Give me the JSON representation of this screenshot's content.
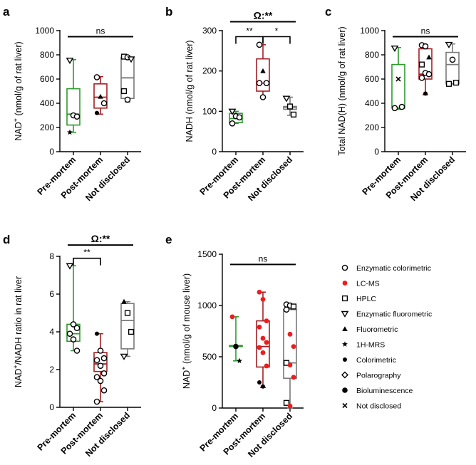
{
  "figure": {
    "panel_labels": [
      "a",
      "b",
      "c",
      "d",
      "e"
    ]
  },
  "legend": {
    "items": [
      {
        "label": "Enzymatic colorimetric",
        "marker": "circle-open"
      },
      {
        "label": "LC-MS",
        "marker": "circle-red"
      },
      {
        "label": "HPLC",
        "marker": "square-open"
      },
      {
        "label": "Enzymatic fluorometric",
        "marker": "triangle-down-open"
      },
      {
        "label": "Fluorometric",
        "marker": "triangle-up-filled"
      },
      {
        "label": "1H-MRS",
        "marker": "star"
      },
      {
        "label": "Colorimetric",
        "marker": "circle-filled-small"
      },
      {
        "label": "Polarography",
        "marker": "diamond-open"
      },
      {
        "label": "Bioluminescence",
        "marker": "circle-filled"
      },
      {
        "label": "Not disclosed",
        "marker": "cross"
      }
    ]
  },
  "colors": {
    "green": "#2e9a2e",
    "red": "#a31f24",
    "gray": "#7a7a7a",
    "lcms": "#ee1c1c",
    "black": "#000000"
  },
  "chart_data": [
    {
      "panel": "a",
      "type": "box",
      "ylabel_parts": [
        "NAD",
        "+",
        " (nmol/g of rat liver)"
      ],
      "ylim": [
        0,
        1000
      ],
      "yticks": [
        "0",
        "200",
        "400",
        "600",
        "800",
        "1000"
      ],
      "categories": [
        "Pre-mortem",
        "Post-mortem",
        "Not disclosed"
      ],
      "annotations": [
        {
          "text": "ns",
          "from": 0,
          "to": 2,
          "level": 950
        }
      ],
      "boxes": [
        {
          "color": "green",
          "min": 160,
          "q1": 220,
          "median": 310,
          "q3": 520,
          "max": 760,
          "points": [
            {
              "v": 755,
              "m": "triangle-down-open"
            },
            {
              "v": 300,
              "m": "circle-open"
            },
            {
              "v": 290,
              "m": "circle-open"
            },
            {
              "v": 160,
              "m": "star"
            }
          ]
        },
        {
          "color": "red",
          "min": 310,
          "q1": 360,
          "median": 450,
          "q3": 560,
          "max": 620,
          "points": [
            {
              "v": 615,
              "m": "circle-open"
            },
            {
              "v": 455,
              "m": "triangle-up-filled"
            },
            {
              "v": 400,
              "m": "circle-open"
            },
            {
              "v": 320,
              "m": "circle-filled-small"
            }
          ]
        },
        {
          "color": "gray",
          "min": 410,
          "q1": 440,
          "median": 610,
          "q3": 780,
          "max": 790,
          "points": [
            {
              "v": 785,
              "m": "square-open"
            },
            {
              "v": 780,
              "m": "circle-open"
            },
            {
              "v": 765,
              "m": "triangle-down-open"
            },
            {
              "v": 500,
              "m": "square-open"
            },
            {
              "v": 430,
              "m": "circle-open"
            }
          ]
        }
      ]
    },
    {
      "panel": "b",
      "type": "box",
      "ylabel_parts": [
        "NADH (nmol/g of rat liver)"
      ],
      "ylim": [
        0,
        300
      ],
      "yticks": [
        "0",
        "100",
        "200",
        "300"
      ],
      "categories": [
        "Pre-mortem",
        "Post-mortem",
        "Not disclosed"
      ],
      "annotations": [
        {
          "text": "Ω:**",
          "from": 0,
          "to": 2,
          "level": 322
        },
        {
          "text": "**",
          "from": 0,
          "to": 1,
          "level": 285
        },
        {
          "text": "*",
          "from": 1,
          "to": 2,
          "level": 285
        }
      ],
      "boxes": [
        {
          "color": "green",
          "min": 70,
          "q1": 72,
          "median": 82,
          "q3": 95,
          "max": 100,
          "points": [
            {
              "v": 100,
              "m": "triangle-down-open"
            },
            {
              "v": 88,
              "m": "circle-open"
            },
            {
              "v": 85,
              "m": "circle-open"
            },
            {
              "v": 70,
              "m": "circle-open"
            }
          ]
        },
        {
          "color": "red",
          "min": 135,
          "q1": 150,
          "median": 170,
          "q3": 230,
          "max": 265,
          "points": [
            {
              "v": 265,
              "m": "circle-open"
            },
            {
              "v": 200,
              "m": "triangle-up-filled"
            },
            {
              "v": 170,
              "m": "circle-open"
            },
            {
              "v": 170,
              "m": "circle-open"
            },
            {
              "v": 135,
              "m": "circle-open"
            }
          ]
        },
        {
          "color": "gray",
          "min": 90,
          "q1": 105,
          "median": 110,
          "q3": 112,
          "max": 135,
          "points": [
            {
              "v": 132,
              "m": "triangle-down-open"
            },
            {
              "v": 112,
              "m": "square-open"
            },
            {
              "v": 92,
              "m": "square-open"
            }
          ]
        }
      ]
    },
    {
      "panel": "c",
      "type": "box",
      "ylabel_parts": [
        "Total NAD(H) (nmol/g of rat liver)"
      ],
      "ylim": [
        0,
        1000
      ],
      "yticks": [
        "0",
        "200",
        "400",
        "600",
        "800",
        "1000"
      ],
      "categories": [
        "Pre-mortem",
        "Post-mortem",
        "Not disclosed"
      ],
      "annotations": [
        {
          "text": "ns",
          "from": 0,
          "to": 2,
          "level": 950
        }
      ],
      "boxes": [
        {
          "color": "green",
          "min": 350,
          "q1": 360,
          "median": 360,
          "q3": 720,
          "max": 860,
          "points": [
            {
              "v": 855,
              "m": "triangle-down-open"
            },
            {
              "v": 600,
              "m": "cross"
            },
            {
              "v": 370,
              "m": "circle-open"
            },
            {
              "v": 360,
              "m": "circle-open"
            }
          ]
        },
        {
          "color": "red",
          "min": 470,
          "q1": 600,
          "median": 640,
          "q3": 850,
          "max": 880,
          "points": [
            {
              "v": 880,
              "m": "circle-open"
            },
            {
              "v": 870,
              "m": "circle-open"
            },
            {
              "v": 780,
              "m": "triangle-up-filled"
            },
            {
              "v": 720,
              "m": "square-open"
            },
            {
              "v": 650,
              "m": "circle-open"
            },
            {
              "v": 640,
              "m": "circle-open"
            },
            {
              "v": 610,
              "m": "circle-open"
            },
            {
              "v": 480,
              "m": "circle-filled-small"
            }
          ]
        },
        {
          "color": "gray",
          "min": 560,
          "q1": 560,
          "median": 720,
          "q3": 820,
          "max": 890,
          "points": [
            {
              "v": 885,
              "m": "triangle-down-open"
            },
            {
              "v": 760,
              "m": "circle-open"
            },
            {
              "v": 570,
              "m": "square-open"
            },
            {
              "v": 560,
              "m": "square-open"
            }
          ]
        }
      ]
    },
    {
      "panel": "d",
      "type": "box",
      "ylabel_parts": [
        "NAD",
        "+",
        "/NADH ratio in rat liver"
      ],
      "ylim": [
        0,
        8
      ],
      "yticks": [
        "0",
        "2",
        "4",
        "6",
        "8"
      ],
      "categories": [
        "Pre-mortem",
        "Post-mortem",
        "Not disclosed"
      ],
      "annotations": [
        {
          "text": "Ω:**",
          "from": 0,
          "to": 2,
          "level": 8.6
        },
        {
          "text": "**",
          "from": 0,
          "to": 1,
          "level": 7.9
        }
      ],
      "boxes": [
        {
          "color": "green",
          "min": 3.0,
          "q1": 3.5,
          "median": 3.9,
          "q3": 4.4,
          "max": 7.5,
          "points": [
            {
              "v": 7.5,
              "m": "triangle-down-open"
            },
            {
              "v": 4.4,
              "m": "circle-open"
            },
            {
              "v": 4.2,
              "m": "circle-open"
            },
            {
              "v": 3.9,
              "m": "circle-open"
            },
            {
              "v": 3.6,
              "m": "circle-open"
            },
            {
              "v": 3.0,
              "m": "circle-open"
            }
          ]
        },
        {
          "color": "red",
          "min": 0.3,
          "q1": 1.9,
          "median": 2.3,
          "q3": 2.9,
          "max": 3.9,
          "points": [
            {
              "v": 3.9,
              "m": "circle-filled-small"
            },
            {
              "v": 3.0,
              "m": "circle-open"
            },
            {
              "v": 2.6,
              "m": "circle-open"
            },
            {
              "v": 2.5,
              "m": "circle-open"
            },
            {
              "v": 2.2,
              "m": "circle-open"
            },
            {
              "v": 1.8,
              "m": "circle-open"
            },
            {
              "v": 1.6,
              "m": "circle-open"
            },
            {
              "v": 1.4,
              "m": "circle-open"
            },
            {
              "v": 0.9,
              "m": "circle-open"
            },
            {
              "v": 0.3,
              "m": "circle-open"
            }
          ]
        },
        {
          "color": "gray",
          "min": 2.7,
          "q1": 3.1,
          "median": 4.6,
          "q3": 5.5,
          "max": 5.6,
          "points": [
            {
              "v": 5.6,
              "m": "triangle-up-filled"
            },
            {
              "v": 5.0,
              "m": "square-open"
            },
            {
              "v": 4.0,
              "m": "square-open"
            },
            {
              "v": 2.7,
              "m": "triangle-down-open"
            }
          ]
        }
      ]
    },
    {
      "panel": "e",
      "type": "box",
      "ylabel_parts": [
        "NAD",
        "+",
        " (nmol/g of mouse liver)"
      ],
      "ylim": [
        0,
        1500
      ],
      "yticks": [
        "0",
        "500",
        "1000",
        "1500"
      ],
      "categories": [
        "Pre-mortem",
        "Post-mortem",
        "Not disclosed"
      ],
      "annotations": [
        {
          "text": "ns",
          "from": 0,
          "to": 2,
          "level": 1400
        }
      ],
      "boxes": [
        {
          "color": "green",
          "min": 460,
          "q1": 600,
          "median": 600,
          "q3": 610,
          "max": 890,
          "points": [
            {
              "v": 890,
              "m": "circle-red"
            },
            {
              "v": 600,
              "m": "circle-filled"
            },
            {
              "v": 460,
              "m": "star"
            }
          ]
        },
        {
          "color": "red",
          "min": 200,
          "q1": 400,
          "median": 600,
          "q3": 850,
          "max": 1130,
          "points": [
            {
              "v": 1130,
              "m": "circle-red"
            },
            {
              "v": 1060,
              "m": "circle-red"
            },
            {
              "v": 850,
              "m": "circle-red"
            },
            {
              "v": 790,
              "m": "circle-red"
            },
            {
              "v": 680,
              "m": "circle-red"
            },
            {
              "v": 640,
              "m": "circle-red"
            },
            {
              "v": 590,
              "m": "circle-red"
            },
            {
              "v": 540,
              "m": "circle-red"
            },
            {
              "v": 410,
              "m": "circle-red"
            },
            {
              "v": 250,
              "m": "circle-filled-small"
            },
            {
              "v": 210,
              "m": "circle-filled-small"
            }
          ]
        },
        {
          "color": "gray",
          "min": 0,
          "q1": 290,
          "median": 440,
          "q3": 960,
          "max": 1010,
          "points": [
            {
              "v": 1010,
              "m": "circle-open"
            },
            {
              "v": 1000,
              "m": "circle-open"
            },
            {
              "v": 990,
              "m": "square-open"
            },
            {
              "v": 960,
              "m": "circle-open"
            },
            {
              "v": 720,
              "m": "circle-red"
            },
            {
              "v": 600,
              "m": "circle-red"
            },
            {
              "v": 440,
              "m": "square-open"
            },
            {
              "v": 420,
              "m": "circle-red"
            },
            {
              "v": 300,
              "m": "circle-red"
            },
            {
              "v": 50,
              "m": "square-open"
            },
            {
              "v": 20,
              "m": "circle-red"
            }
          ]
        }
      ]
    }
  ]
}
